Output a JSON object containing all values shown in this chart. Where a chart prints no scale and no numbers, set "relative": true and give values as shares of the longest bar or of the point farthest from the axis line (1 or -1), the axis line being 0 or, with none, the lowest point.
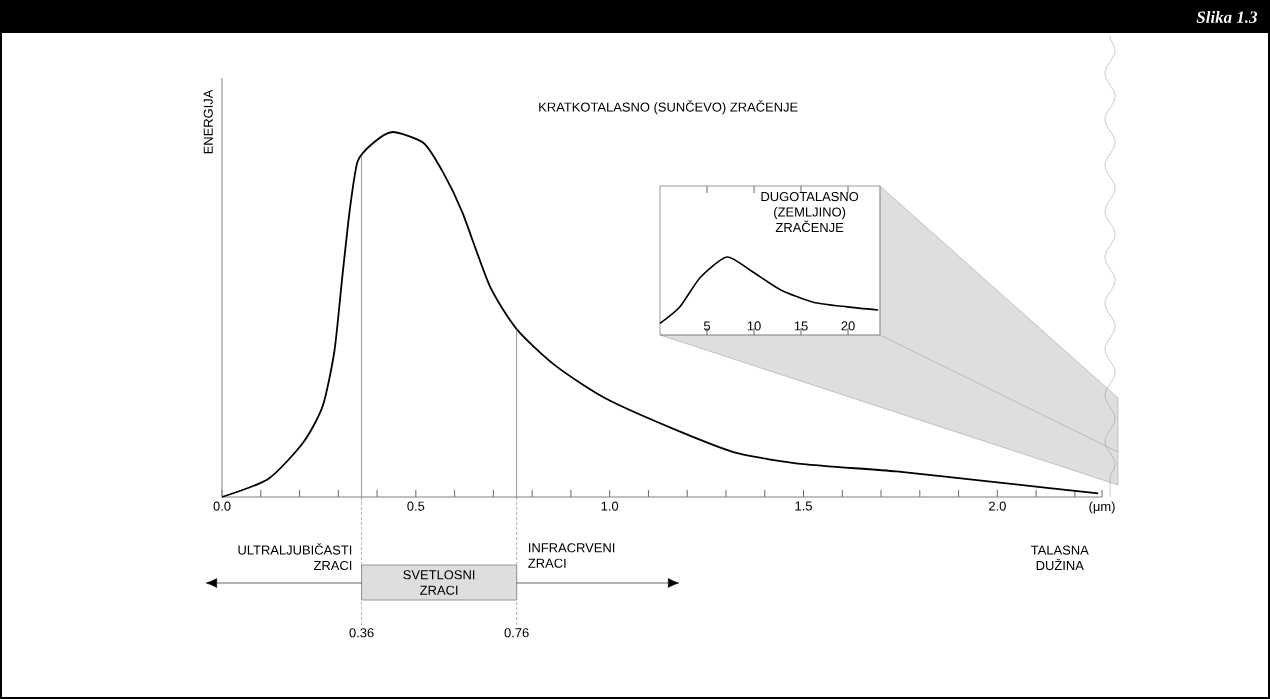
{
  "chart_data": [
    {
      "type": "line",
      "title": "KRATKOTALASNO (SUNČEVO) ZRAČENJE",
      "xlabel": "TALASNA DUŽINA",
      "ylabel": "ENERGIJA",
      "relative": true,
      "color": "#000000",
      "tick_labels": "x",
      "x": [
        0,
        0.12,
        0.21,
        0.26,
        0.29,
        0.31,
        0.33,
        0.35,
        0.39,
        0.44,
        0.52,
        0.57,
        0.62,
        0.69,
        0.76,
        0.86,
        0.99,
        1.18,
        1.33,
        1.5,
        1.74,
        2.0,
        2.26
      ],
      "values": [
        0,
        0.05,
        0.15,
        0.25,
        0.4,
        0.6,
        0.79,
        0.92,
        0.97,
        1.0,
        0.97,
        0.89,
        0.78,
        0.58,
        0.46,
        0.36,
        0.27,
        0.18,
        0.12,
        0.09,
        0.07,
        0.04,
        0.01
      ],
      "xlim": [
        0,
        2.27
      ],
      "xticks": [
        {
          "value": 0,
          "label": "0.0"
        },
        {
          "value": 0.1,
          "label": null
        },
        {
          "value": 0.2,
          "label": null
        },
        {
          "value": 0.3,
          "label": null
        },
        {
          "value": 0.4,
          "label": null
        },
        {
          "value": 0.5,
          "label": "0.5"
        },
        {
          "value": 0.6,
          "label": null
        },
        {
          "value": 0.7,
          "label": null
        },
        {
          "value": 0.8,
          "label": null
        },
        {
          "value": 0.9,
          "label": null
        },
        {
          "value": 1.0,
          "label": "1.0"
        },
        {
          "value": 1.1,
          "label": null
        },
        {
          "value": 1.2,
          "label": null
        },
        {
          "value": 1.3,
          "label": null
        },
        {
          "value": 1.4,
          "label": null
        },
        {
          "value": 1.5,
          "label": "1.5"
        },
        {
          "value": 1.6,
          "label": null
        },
        {
          "value": 1.7,
          "label": null
        },
        {
          "value": 1.8,
          "label": null
        },
        {
          "value": 1.9,
          "label": null
        },
        {
          "value": 2.0,
          "label": "2.0"
        },
        {
          "value": 2.1,
          "label": null
        },
        {
          "value": 2.2,
          "label": null
        },
        {
          "value": 2.27,
          "label": "(μm)"
        }
      ],
      "ref_lines": [
        {
          "axis": "x",
          "value": 0.36,
          "label": "0.36",
          "color": "#808080"
        },
        {
          "axis": "x",
          "value": 0.76,
          "label": "0.76",
          "color": "#808080"
        }
      ],
      "annotations": [
        "ULTRALJUBIČASTI ZRACI",
        "INFRACRVENI ZRACI",
        "SVETLOSNI ZRACI",
        "Slika 1.3"
      ]
    },
    {
      "type": "line",
      "title": "DUGOTALASNO (ZEMLJINO) ZRAČENJE",
      "relative": true,
      "color": "#000000",
      "tick_labels": "x",
      "x": [
        0,
        2.1,
        4.3,
        7.1,
        9.6,
        12.8,
        16.3,
        19.9,
        23.2
      ],
      "values": [
        0.15,
        0.36,
        0.74,
        1.0,
        0.83,
        0.58,
        0.42,
        0.36,
        0.32
      ],
      "xlim": [
        0,
        23.4
      ],
      "xticks": [
        5,
        10,
        15,
        20
      ]
    }
  ]
}
